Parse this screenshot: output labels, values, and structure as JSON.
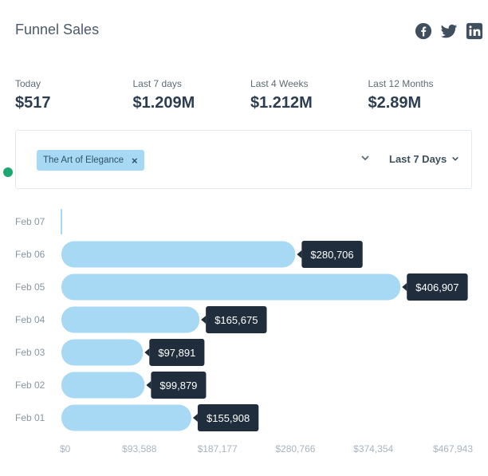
{
  "header": {
    "title": "Funnel Sales",
    "social": [
      "facebook-icon",
      "twitter-icon",
      "linkedin-icon"
    ]
  },
  "stats": [
    {
      "label": "Today",
      "value": "$517"
    },
    {
      "label": "Last 7 days",
      "value": "$1.209M"
    },
    {
      "label": "Last 4 Weeks",
      "value": "$1.212M"
    },
    {
      "label": "Last 12 Months",
      "value": "$2.89M"
    }
  ],
  "filter": {
    "chip_label": "The Art of Elegance",
    "chip_remove": "×",
    "range_label": "Last 7 Days"
  },
  "colors": {
    "bar": "#a7d8f4",
    "tooltip_bg": "#1f2d3d",
    "tooltip_text": "#ffffff",
    "axis_text": "#a9b4be",
    "label_text": "#8796a3",
    "icon": "#3f4f5e",
    "status_dot": "#1fa572"
  },
  "chart_data": {
    "type": "bar",
    "orientation": "horizontal",
    "categories": [
      "Feb 07",
      "Feb 06",
      "Feb 05",
      "Feb 04",
      "Feb 03",
      "Feb 02",
      "Feb 01"
    ],
    "values": [
      0,
      280706,
      406907,
      165675,
      97891,
      99879,
      155908
    ],
    "value_labels": [
      "",
      "$280,706",
      "$406,907",
      "$165,675",
      "$97,891",
      "$99,879",
      "$155,908"
    ],
    "xlim": [
      0,
      467943
    ],
    "xticks": [
      0,
      93588,
      187177,
      280766,
      374354,
      467943
    ],
    "xtick_labels": [
      "$0",
      "$93,588",
      "$187,177",
      "$280,766",
      "$374,354",
      "$467,943"
    ],
    "grid": false,
    "legend": "none"
  }
}
